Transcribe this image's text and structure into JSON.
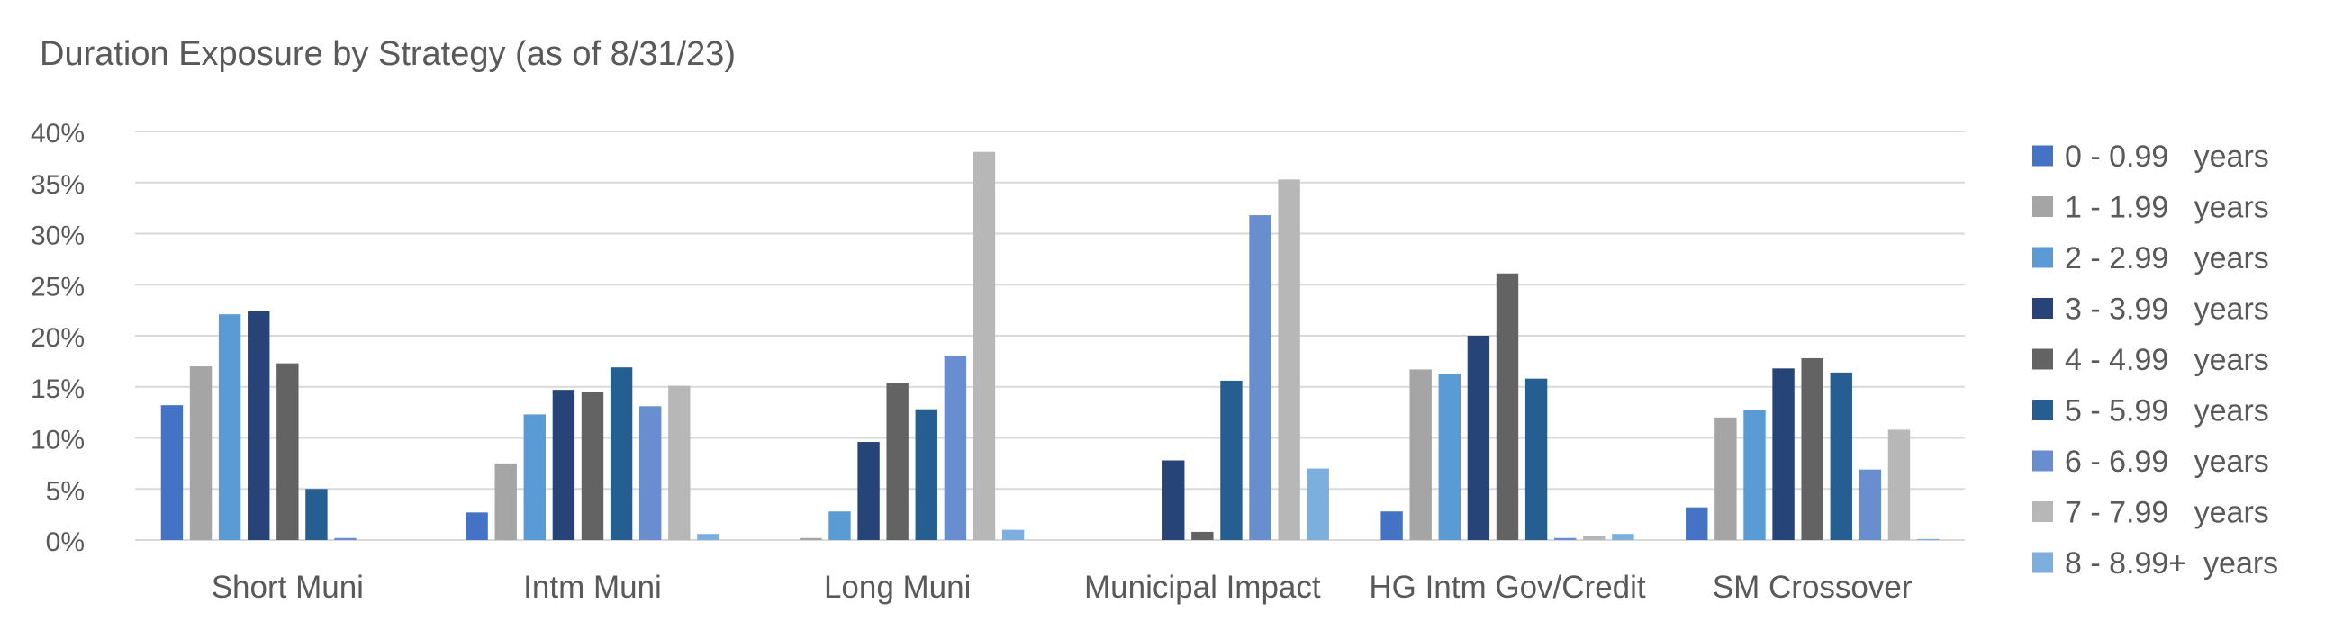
{
  "chart_data": {
    "type": "bar",
    "title": "Duration Exposure by Strategy (as of 8/31/23)",
    "xlabel": "",
    "ylabel": "",
    "ylim": [
      0,
      40
    ],
    "yticks": [
      "0%",
      "5%",
      "10%",
      "15%",
      "20%",
      "25%",
      "30%",
      "35%",
      "40%"
    ],
    "grid": true,
    "legend_position": "right",
    "categories": [
      "Short Muni",
      "Intm Muni",
      "Long Muni",
      "Municipal Impact",
      "HG Intm Gov/Credit",
      "SM Crossover"
    ],
    "series": [
      {
        "name": "0 - 0.99   years",
        "color": "#4472C4",
        "values": [
          13.2,
          2.7,
          0.0,
          0.0,
          2.8,
          3.2
        ]
      },
      {
        "name": "1 - 1.99   years",
        "color": "#A5A5A5",
        "values": [
          17.0,
          7.5,
          0.2,
          0.0,
          16.7,
          12.0
        ]
      },
      {
        "name": "2 - 2.99   years",
        "color": "#5B9BD5",
        "values": [
          22.1,
          12.3,
          2.8,
          0.0,
          16.3,
          12.7
        ]
      },
      {
        "name": "3 - 3.99   years",
        "color": "#264478",
        "values": [
          22.4,
          14.7,
          9.6,
          7.8,
          20.0,
          16.8
        ]
      },
      {
        "name": "4 - 4.99   years",
        "color": "#636363",
        "values": [
          17.3,
          14.5,
          15.4,
          0.8,
          26.1,
          17.8
        ]
      },
      {
        "name": "5 - 5.99   years",
        "color": "#255E91",
        "values": [
          5.0,
          16.9,
          12.8,
          15.6,
          15.8,
          16.4
        ]
      },
      {
        "name": "6 - 6.99   years",
        "color": "#698ED0",
        "values": [
          0.2,
          13.1,
          18.0,
          31.8,
          0.2,
          6.9
        ]
      },
      {
        "name": "7 - 7.99   years",
        "color": "#B7B7B7",
        "values": [
          0.0,
          15.1,
          38.0,
          35.3,
          0.4,
          10.8
        ]
      },
      {
        "name": "8 - 8.99+  years",
        "color": "#7CAFDD",
        "values": [
          0.0,
          0.6,
          1.0,
          7.0,
          0.6,
          0.1
        ]
      }
    ]
  }
}
